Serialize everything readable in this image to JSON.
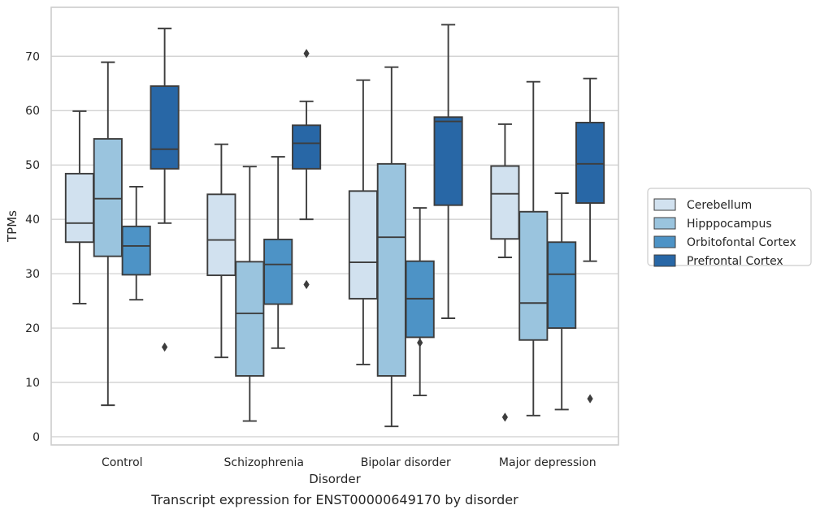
{
  "caption": "Transcript expression for ENST00000649170 by disorder",
  "colors": {
    "Cerebellum": "#d1e1ef",
    "Hipppocampus": "#9ac4de",
    "Orbitofontal Cortex": "#4d93c6",
    "Prefrontal Cortex": "#2867a6",
    "edge": "#3d3d3d",
    "grid": "#cccccc"
  },
  "chart_data": {
    "type": "box",
    "xlabel": "Disorder",
    "ylabel": "TPMs",
    "ylim": [
      -1.5,
      79
    ],
    "yticks": [
      0,
      10,
      20,
      30,
      40,
      50,
      60,
      70
    ],
    "grid": "horizontal",
    "legend_position": "right",
    "categories": [
      "Control",
      "Schizophrenia",
      "Bipolar disorder",
      "Major depression"
    ],
    "series": [
      {
        "name": "Cerebellum",
        "boxes": [
          {
            "whisker_low": 24.5,
            "q1": 35.8,
            "median": 39.3,
            "q3": 48.4,
            "whisker_high": 59.9,
            "outliers": []
          },
          {
            "whisker_low": 14.6,
            "q1": 29.7,
            "median": 36.2,
            "q3": 44.6,
            "whisker_high": 53.8,
            "outliers": []
          },
          {
            "whisker_low": 13.3,
            "q1": 25.4,
            "median": 32.1,
            "q3": 45.2,
            "whisker_high": 65.6,
            "outliers": []
          },
          {
            "whisker_low": 33.0,
            "q1": 36.4,
            "median": 44.7,
            "q3": 49.8,
            "whisker_high": 57.5,
            "outliers": [
              3.6
            ]
          }
        ]
      },
      {
        "name": "Hipppocampus",
        "boxes": [
          {
            "whisker_low": 5.8,
            "q1": 33.2,
            "median": 43.8,
            "q3": 54.8,
            "whisker_high": 68.9,
            "outliers": []
          },
          {
            "whisker_low": 2.9,
            "q1": 11.2,
            "median": 22.7,
            "q3": 32.2,
            "whisker_high": 49.7,
            "outliers": []
          },
          {
            "whisker_low": 1.9,
            "q1": 11.2,
            "median": 36.7,
            "q3": 50.2,
            "whisker_high": 68.0,
            "outliers": []
          },
          {
            "whisker_low": 3.9,
            "q1": 17.8,
            "median": 24.6,
            "q3": 41.4,
            "whisker_high": 65.3,
            "outliers": []
          }
        ]
      },
      {
        "name": "Orbitofontal Cortex",
        "boxes": [
          {
            "whisker_low": 25.2,
            "q1": 29.8,
            "median": 35.1,
            "q3": 38.7,
            "whisker_high": 46.0,
            "outliers": []
          },
          {
            "whisker_low": 16.3,
            "q1": 24.4,
            "median": 31.7,
            "q3": 36.3,
            "whisker_high": 51.5,
            "outliers": []
          },
          {
            "whisker_low": 7.6,
            "q1": 18.3,
            "median": 25.4,
            "q3": 32.3,
            "whisker_high": 42.1,
            "outliers": [
              17.3
            ]
          },
          {
            "whisker_low": 5.0,
            "q1": 20.0,
            "median": 29.9,
            "q3": 35.8,
            "whisker_high": 44.8,
            "outliers": []
          }
        ]
      },
      {
        "name": "Prefrontal Cortex",
        "boxes": [
          {
            "whisker_low": 39.3,
            "q1": 49.3,
            "median": 52.9,
            "q3": 64.5,
            "whisker_high": 75.1,
            "outliers": [
              16.5
            ]
          },
          {
            "whisker_low": 40.0,
            "q1": 49.3,
            "median": 54.0,
            "q3": 57.3,
            "whisker_high": 61.7,
            "outliers": [
              70.5,
              28.0
            ]
          },
          {
            "whisker_low": 21.8,
            "q1": 42.6,
            "median": 58.0,
            "q3": 58.8,
            "whisker_high": 75.8,
            "outliers": []
          },
          {
            "whisker_low": 32.3,
            "q1": 43.0,
            "median": 50.2,
            "q3": 57.8,
            "whisker_high": 65.9,
            "outliers": [
              7.0
            ]
          }
        ]
      }
    ]
  }
}
